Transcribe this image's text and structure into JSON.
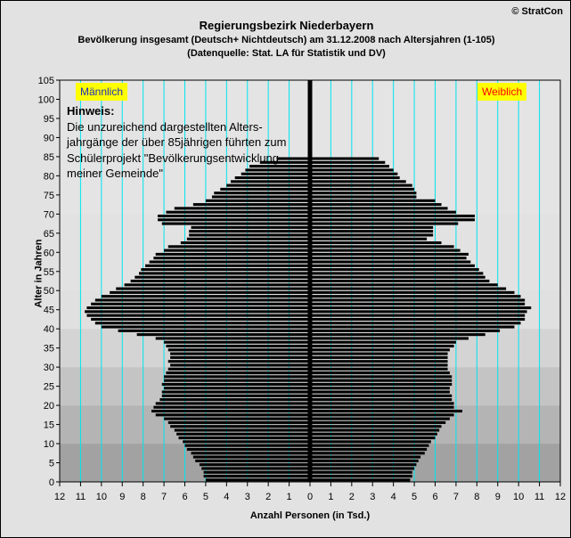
{
  "header": {
    "title": "Regierungsbezirk Niederbayern",
    "subtitle": "Bevölkerung  insgesamt (Deutsch+ Nichtdeutsch) am 31.12.2008 nach Altersjahren (1-105)",
    "source": "(Datenquelle: Stat. LA für Statistik und DV)",
    "copyright": "© StratCon"
  },
  "note": {
    "heading": "Hinweis:",
    "lines": [
      "Die unzureichend dargestellten Alters-",
      "jahrgänge der über 85jährigen führten zum",
      "Schülerprojekt \"Bevölkerungsentwicklung",
      "meiner Gemeinde\""
    ]
  },
  "legend": {
    "male": "Männlich",
    "female": "Weiblich"
  },
  "colors": {
    "bar": "#000000",
    "gridline": "#00e5ee",
    "center_axis": "#000000",
    "male_label": "#1f2fbf",
    "female_label": "#ff0000",
    "label_bg": "#ffff00"
  },
  "chart_data": {
    "type": "bar",
    "orientation": "horizontal-population-pyramid",
    "xlabel": "Anzahl Personen (in Tsd.)",
    "ylabel": "Alter in Jahren",
    "xlim": [
      -12,
      12
    ],
    "ylim": [
      0,
      105
    ],
    "x_ticks": [
      12,
      11,
      10,
      9,
      8,
      7,
      6,
      5,
      4,
      3,
      2,
      1,
      0,
      1,
      2,
      3,
      4,
      5,
      6,
      7,
      8,
      9,
      10,
      11,
      12
    ],
    "y_ticks": [
      0,
      5,
      10,
      15,
      20,
      25,
      30,
      35,
      40,
      45,
      50,
      55,
      60,
      65,
      70,
      75,
      80,
      85,
      90,
      95,
      100,
      105
    ],
    "ages": [
      0,
      1,
      2,
      3,
      4,
      5,
      6,
      7,
      8,
      9,
      10,
      11,
      12,
      13,
      14,
      15,
      16,
      17,
      18,
      19,
      20,
      21,
      22,
      23,
      24,
      25,
      26,
      27,
      28,
      29,
      30,
      31,
      32,
      33,
      34,
      35,
      36,
      37,
      38,
      39,
      40,
      41,
      42,
      43,
      44,
      45,
      46,
      47,
      48,
      49,
      50,
      51,
      52,
      53,
      54,
      55,
      56,
      57,
      58,
      59,
      60,
      61,
      62,
      63,
      64,
      65,
      66,
      67,
      68,
      69,
      70,
      71,
      72,
      73,
      74,
      75,
      76,
      77,
      78,
      79,
      80,
      81,
      82,
      83,
      84
    ],
    "series": [
      {
        "name": "Männlich",
        "values": [
          5.0,
          5.1,
          5.1,
          5.2,
          5.3,
          5.5,
          5.6,
          5.7,
          5.9,
          6.0,
          6.1,
          6.3,
          6.4,
          6.5,
          6.7,
          6.8,
          7.0,
          7.4,
          7.6,
          7.5,
          7.4,
          7.2,
          7.1,
          7.1,
          7.0,
          7.1,
          7.0,
          7.0,
          6.9,
          6.8,
          6.7,
          6.8,
          6.7,
          6.7,
          6.8,
          6.9,
          7.0,
          7.4,
          8.3,
          9.2,
          10.0,
          10.3,
          10.5,
          10.7,
          10.8,
          10.7,
          10.5,
          10.3,
          10.0,
          9.6,
          9.3,
          8.9,
          8.6,
          8.4,
          8.2,
          8.1,
          7.9,
          7.7,
          7.5,
          7.4,
          7.0,
          6.8,
          6.2,
          5.9,
          5.8,
          5.8,
          5.7,
          7.1,
          7.3,
          7.3,
          6.9,
          6.5,
          5.6,
          5.0,
          4.7,
          4.6,
          4.3,
          4.0,
          3.8,
          3.6,
          3.3,
          3.1,
          2.9,
          2.4,
          1.6
        ]
      },
      {
        "name": "Weiblich",
        "values": [
          4.8,
          4.9,
          4.9,
          5.0,
          5.1,
          5.2,
          5.3,
          5.5,
          5.6,
          5.7,
          5.8,
          6.0,
          6.1,
          6.2,
          6.3,
          6.5,
          6.7,
          6.9,
          7.3,
          6.9,
          6.9,
          6.8,
          6.8,
          6.7,
          6.7,
          6.8,
          6.8,
          6.8,
          6.7,
          6.6,
          6.6,
          6.6,
          6.6,
          6.6,
          6.7,
          6.9,
          7.0,
          7.6,
          8.4,
          9.1,
          9.8,
          10.1,
          10.3,
          10.3,
          10.4,
          10.6,
          10.3,
          10.3,
          10.1,
          9.8,
          9.4,
          9.0,
          8.6,
          8.4,
          8.3,
          8.1,
          7.9,
          7.7,
          7.5,
          7.6,
          7.2,
          6.9,
          6.3,
          5.6,
          5.9,
          5.9,
          5.9,
          7.1,
          7.9,
          7.9,
          7.0,
          6.6,
          6.3,
          6.0,
          5.1,
          5.1,
          5.0,
          4.9,
          4.6,
          4.3,
          4.2,
          4.0,
          3.8,
          3.6,
          3.3
        ]
      }
    ],
    "grid": true,
    "legend": "top-left and top-right labels"
  }
}
